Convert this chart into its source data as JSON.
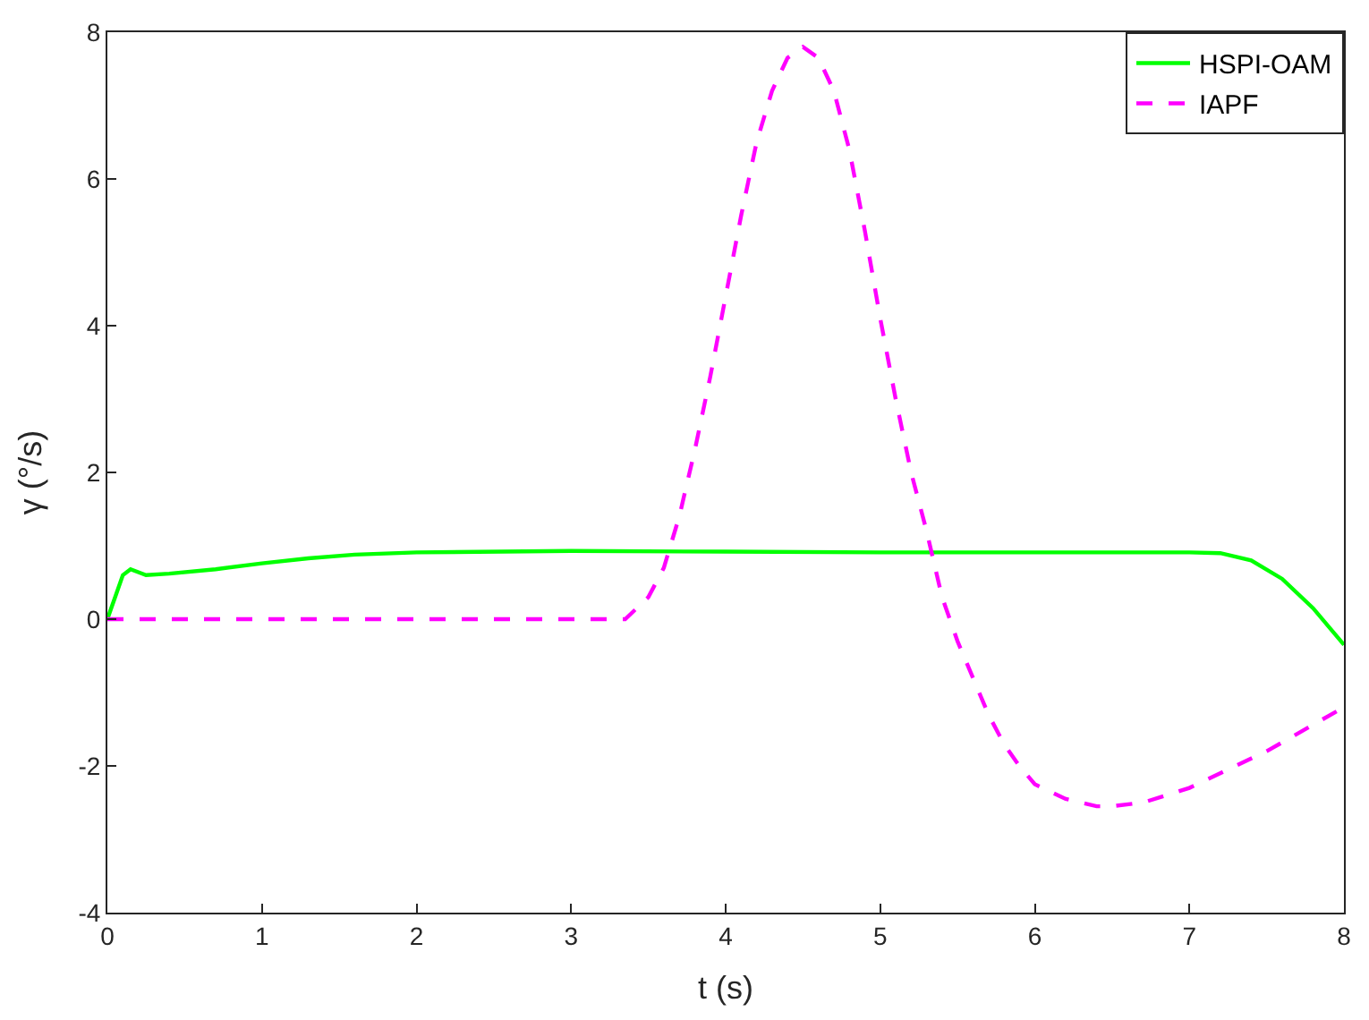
{
  "chart_data": {
    "type": "line",
    "xlabel": "t (s)",
    "ylabel": "γ (°/s)",
    "xlim": [
      0,
      8
    ],
    "xticks": [
      0,
      1,
      2,
      3,
      4,
      5,
      6,
      7,
      8
    ],
    "ylim": [
      -4,
      8
    ],
    "yticks": [
      -4,
      -2,
      0,
      2,
      4,
      6,
      8
    ],
    "legend": "top right",
    "marker": "none",
    "series": [
      {
        "name": "HSPI-OAM",
        "color": "#00ff00",
        "line_style": "solid",
        "x": [
          0,
          0.05,
          0.1,
          0.15,
          0.2,
          0.25,
          0.4,
          0.7,
          1.0,
          1.3,
          1.6,
          2.0,
          3.0,
          4.0,
          5.0,
          6.0,
          7.0,
          7.2,
          7.4,
          7.6,
          7.8,
          8.0
        ],
        "values": [
          0,
          0.3,
          0.6,
          0.68,
          0.64,
          0.6,
          0.62,
          0.68,
          0.76,
          0.83,
          0.88,
          0.91,
          0.93,
          0.92,
          0.91,
          0.91,
          0.91,
          0.9,
          0.8,
          0.55,
          0.15,
          -0.35
        ]
      },
      {
        "name": "IAPF",
        "color": "#ff00ff",
        "line_style": "dashed",
        "x": [
          0,
          3.35,
          3.5,
          3.6,
          3.7,
          3.8,
          3.9,
          4.0,
          4.1,
          4.2,
          4.3,
          4.4,
          4.5,
          4.6,
          4.7,
          4.8,
          4.9,
          5.0,
          5.1,
          5.2,
          5.3,
          5.4,
          5.5,
          5.6,
          5.7,
          5.8,
          5.9,
          6.0,
          6.2,
          6.4,
          6.5,
          6.7,
          7.0,
          7.5,
          8.0
        ],
        "values": [
          0,
          0,
          0.3,
          0.7,
          1.4,
          2.3,
          3.3,
          4.4,
          5.5,
          6.5,
          7.2,
          7.65,
          7.8,
          7.65,
          7.2,
          6.4,
          5.3,
          4.1,
          3.0,
          2.0,
          1.2,
          0.3,
          -0.3,
          -0.8,
          -1.3,
          -1.7,
          -2.0,
          -2.25,
          -2.45,
          -2.55,
          -2.55,
          -2.5,
          -2.3,
          -1.8,
          -1.2
        ]
      }
    ]
  }
}
